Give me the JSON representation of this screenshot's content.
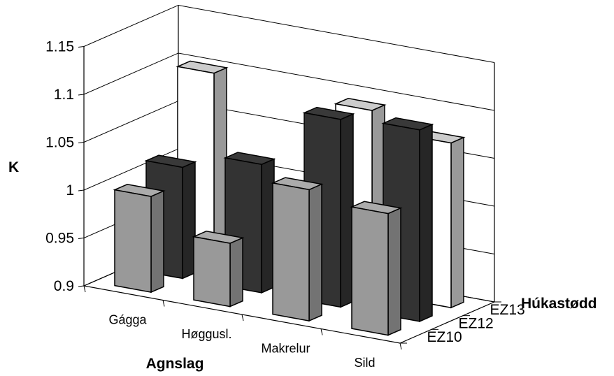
{
  "chart_data": {
    "type": "bar",
    "subtype": "3d-clustered-depth",
    "ylabel": "K",
    "xlabel": "Agnslag",
    "zlabel": "Húkastødd",
    "categories": [
      "Gágga",
      "Høggusl.",
      "Makrelur",
      "Sild"
    ],
    "series": [
      {
        "name": "EZ10",
        "values": [
          1.0,
          0.966,
          1.037,
          1.027
        ]
      },
      {
        "name": "EZ12",
        "values": [
          1.016,
          1.034,
          1.096,
          1.1
        ]
      },
      {
        "name": "EZ13",
        "values": [
          1.1,
          null,
          1.091,
          1.072
        ]
      }
    ],
    "ylim": [
      0.9,
      1.15
    ],
    "yticks": [
      "0.9",
      "0.95",
      "1",
      "1.05",
      "1.1",
      "1.15"
    ],
    "grid": true,
    "colors": {
      "EZ10": "#999999",
      "EZ12": "#333333",
      "EZ13": "#ffffff"
    }
  }
}
